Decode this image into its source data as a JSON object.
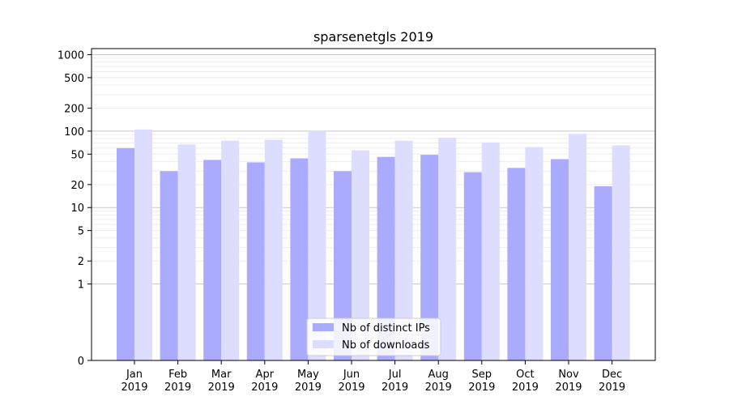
{
  "chart_data": {
    "type": "bar",
    "title": "sparsenetgls 2019",
    "xlabel": "",
    "ylabel": "",
    "yscale": "symlog",
    "ylim": [
      0,
      1200
    ],
    "yticks": [
      0,
      1,
      2,
      5,
      10,
      20,
      50,
      100,
      200,
      500,
      1000
    ],
    "grid": true,
    "legend_position": "bottom-center",
    "categories": [
      [
        "Jan",
        "2019"
      ],
      [
        "Feb",
        "2019"
      ],
      [
        "Mar",
        "2019"
      ],
      [
        "Apr",
        "2019"
      ],
      [
        "May",
        "2019"
      ],
      [
        "Jun",
        "2019"
      ],
      [
        "Jul",
        "2019"
      ],
      [
        "Aug",
        "2019"
      ],
      [
        "Sep",
        "2019"
      ],
      [
        "Oct",
        "2019"
      ],
      [
        "Nov",
        "2019"
      ],
      [
        "Dec",
        "2019"
      ]
    ],
    "series": [
      {
        "name": "Nb of distinct IPs",
        "color": "#aaaaff",
        "values": [
          60,
          30,
          42,
          39,
          44,
          30,
          46,
          49,
          29,
          33,
          43,
          19
        ]
      },
      {
        "name": "Nb of downloads",
        "color": "#ddddff",
        "values": [
          105,
          67,
          75,
          77,
          100,
          56,
          75,
          82,
          71,
          62,
          92,
          65
        ]
      }
    ]
  }
}
